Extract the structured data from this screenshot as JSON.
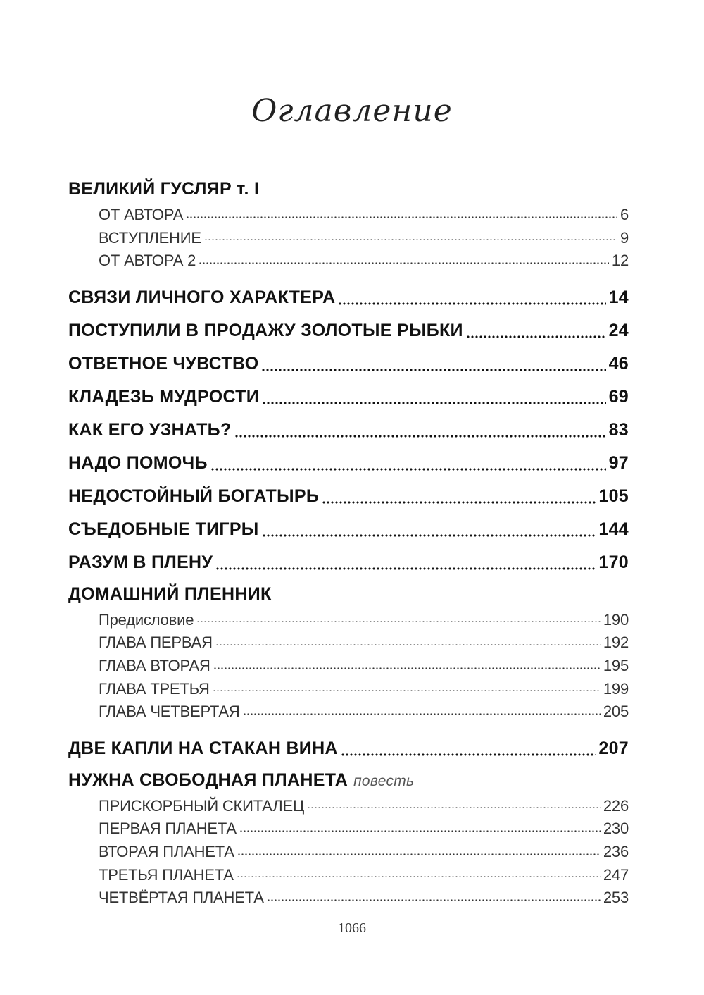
{
  "title": "Оглавление",
  "entries": [
    {
      "label": "ВЕЛИКИЙ ГУСЛЯР т. I",
      "page": "",
      "subs": [
        {
          "label": "ОТ АВТОРА",
          "page": "6"
        },
        {
          "label": "ВСТУПЛЕНИЕ",
          "page": "9"
        },
        {
          "label": "ОТ АВТОРА 2",
          "page": "12"
        }
      ]
    },
    {
      "label": "СВЯЗИ ЛИЧНОГО ХАРАКТЕРА",
      "page": "14"
    },
    {
      "label": "ПОСТУПИЛИ В ПРОДАЖУ ЗОЛОТЫЕ РЫБКИ",
      "page": "24"
    },
    {
      "label": "ОТВЕТНОЕ ЧУВСТВО",
      "page": "46"
    },
    {
      "label": "КЛАДЕЗЬ МУДРОСТИ",
      "page": "69"
    },
    {
      "label": "КАК ЕГО УЗНАТЬ?",
      "page": "83"
    },
    {
      "label": "НАДО ПОМОЧЬ",
      "page": "97"
    },
    {
      "label": "НЕДОСТОЙНЫЙ БОГАТЫРЬ",
      "page": "105"
    },
    {
      "label": "СЪЕДОБНЫЕ ТИГРЫ",
      "page": "144"
    },
    {
      "label": "РАЗУМ В ПЛЕНУ",
      "page": "170"
    },
    {
      "label": "ДОМАШНИЙ ПЛЕННИК",
      "page": "",
      "subs": [
        {
          "label": "Предисловие",
          "page": "190"
        },
        {
          "label": "ГЛАВА ПЕРВАЯ",
          "page": "192"
        },
        {
          "label": "ГЛАВА ВТОРАЯ",
          "page": "195"
        },
        {
          "label": "ГЛАВА ТРЕТЬЯ",
          "page": "199"
        },
        {
          "label": "ГЛАВА ЧЕТВЕРТАЯ",
          "page": "205"
        }
      ]
    },
    {
      "label": "ДВЕ КАПЛИ НА СТАКАН ВИНА",
      "page": "207"
    },
    {
      "label": "НУЖНА СВОБОДНАЯ ПЛАНЕТА",
      "note": "повесть",
      "page": "",
      "subs": [
        {
          "label": "ПРИСКОРБНЫЙ СКИТАЛЕЦ",
          "page": "226"
        },
        {
          "label": "ПЕРВАЯ ПЛАНЕТА",
          "page": "230"
        },
        {
          "label": "ВТОРАЯ ПЛАНЕТА",
          "page": "236"
        },
        {
          "label": "ТРЕТЬЯ ПЛАНЕТА",
          "page": "247"
        },
        {
          "label": "ЧЕТВЁРТАЯ ПЛАНЕТА",
          "page": "253"
        }
      ]
    }
  ],
  "page_number": "1066"
}
